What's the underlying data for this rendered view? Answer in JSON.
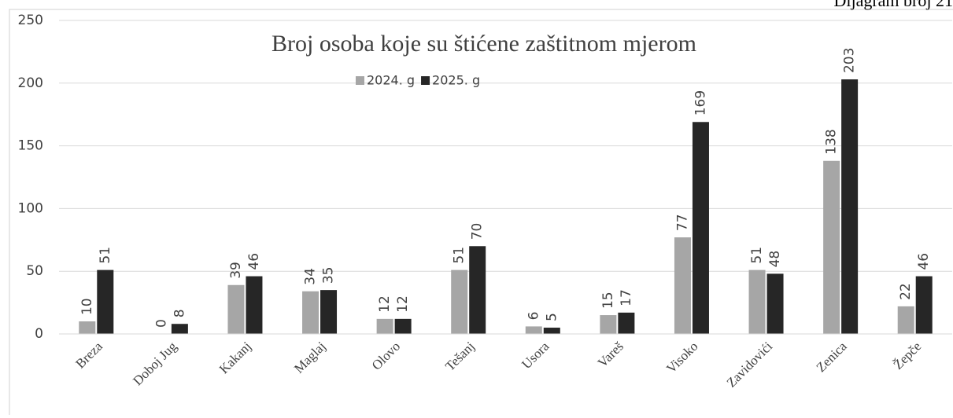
{
  "chart_data": {
    "type": "bar",
    "title": "Broj osoba koje su štićene zaštitnom mjerom",
    "note": "Dijagram broj 21",
    "categories": [
      "Breza",
      "Doboj Jug",
      "Kakanj",
      "Maglaj",
      "Olovo",
      "Tešanj",
      "Usora",
      "Vareš",
      "Visoko",
      "Zavidovići",
      "Zenica",
      "Žepče"
    ],
    "series": [
      {
        "name": "2024. g",
        "color": "#a6a6a6",
        "values": [
          10,
          0,
          39,
          34,
          12,
          51,
          6,
          15,
          77,
          51,
          138,
          22
        ]
      },
      {
        "name": "2025. g",
        "color": "#262626",
        "values": [
          51,
          8,
          46,
          35,
          12,
          70,
          5,
          17,
          169,
          48,
          203,
          46
        ]
      }
    ],
    "ylim": [
      0,
      250
    ],
    "yticks": [
      0,
      50,
      100,
      150,
      200,
      250
    ],
    "grid": true,
    "legend": "top"
  }
}
